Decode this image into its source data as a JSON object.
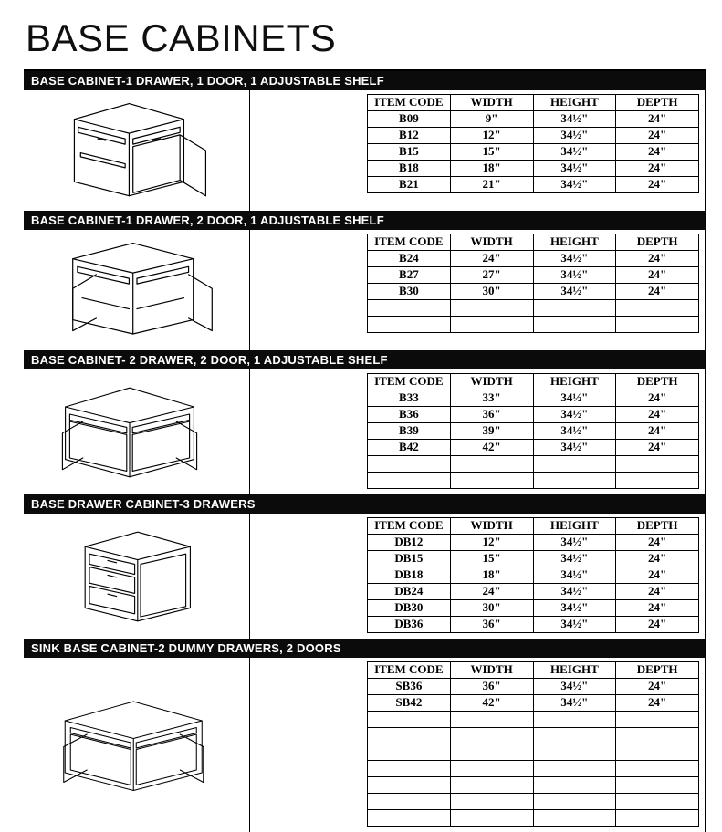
{
  "page_title": "BASE CABINETS",
  "columns": [
    "ITEM CODE",
    "WIDTH",
    "HEIGHT",
    "DEPTH"
  ],
  "colors": {
    "background": "#ffffff",
    "header_bar": "#0b0b0b",
    "header_text": "#ffffff",
    "rule": "#000000",
    "text": "#000000"
  },
  "fonts": {
    "title_family": "Arial Narrow",
    "title_size_pt": 32,
    "header_family": "Arial",
    "header_size_pt": 10,
    "data_family": "Times New Roman",
    "data_size_pt": 10,
    "data_weight": "bold"
  },
  "sections": [
    {
      "title": "BASE CABINET-1 DRAWER, 1 DOOR, 1 ADJUSTABLE SHELF",
      "illustration": "cabinet-1d-1door",
      "min_rows": 5,
      "rows": [
        [
          "B09",
          "9\"",
          "34½\"",
          "24\""
        ],
        [
          "B12",
          "12\"",
          "34½\"",
          "24\""
        ],
        [
          "B15",
          "15\"",
          "34½\"",
          "24\""
        ],
        [
          "B18",
          "18\"",
          "34½\"",
          "24\""
        ],
        [
          "B21",
          "21\"",
          "34½\"",
          "24\""
        ]
      ]
    },
    {
      "title": "BASE CABINET-1 DRAWER, 2 DOOR, 1 ADJUSTABLE SHELF",
      "illustration": "cabinet-1d-2door",
      "min_rows": 5,
      "rows": [
        [
          "B24",
          "24\"",
          "34½\"",
          "24\""
        ],
        [
          "B27",
          "27\"",
          "34½\"",
          "24\""
        ],
        [
          "B30",
          "30\"",
          "34½\"",
          "24\""
        ]
      ]
    },
    {
      "title": "BASE CABINET- 2 DRAWER, 2 DOOR, 1 ADJUSTABLE SHELF",
      "illustration": "cabinet-2d-2door",
      "min_rows": 6,
      "rows": [
        [
          "B33",
          "33\"",
          "34½\"",
          "24\""
        ],
        [
          "B36",
          "36\"",
          "34½\"",
          "24\""
        ],
        [
          "B39",
          "39\"",
          "34½\"",
          "24\""
        ],
        [
          "B42",
          "42\"",
          "34½\"",
          "24\""
        ]
      ]
    },
    {
      "title": "BASE DRAWER CABINET-3 DRAWERS",
      "illustration": "drawer-cabinet-3",
      "min_rows": 6,
      "rows": [
        [
          "DB12",
          "12\"",
          "34½\"",
          "24\""
        ],
        [
          "DB15",
          "15\"",
          "34½\"",
          "24\""
        ],
        [
          "DB18",
          "18\"",
          "34½\"",
          "24\""
        ],
        [
          "DB24",
          "24\"",
          "34½\"",
          "24\""
        ],
        [
          "DB30",
          "30\"",
          "34½\"",
          "24\""
        ],
        [
          "DB36",
          "36\"",
          "34½\"",
          "24\""
        ]
      ]
    },
    {
      "title": "SINK BASE CABINET-2 DUMMY DRAWERS, 2 DOORS",
      "illustration": "sink-base-2door",
      "min_rows": 9,
      "rows": [
        [
          "SB36",
          "36\"",
          "34½\"",
          "24\""
        ],
        [
          "SB42",
          "42\"",
          "34½\"",
          "24\""
        ]
      ]
    }
  ]
}
